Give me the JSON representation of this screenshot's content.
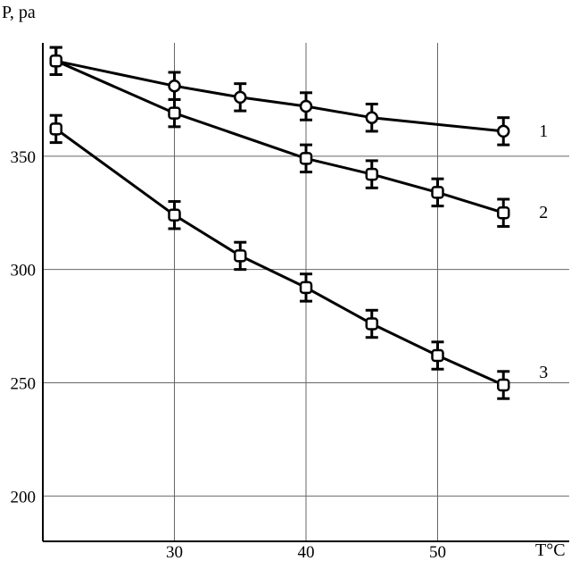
{
  "chart_data": {
    "type": "line",
    "ylabel": "P, pa",
    "xlabel": "T°C",
    "xlim": [
      20,
      60
    ],
    "ylim": [
      180,
      400
    ],
    "x_ticks": [
      30,
      40,
      50
    ],
    "y_ticks": [
      200,
      250,
      300,
      350
    ],
    "grid": true,
    "series": [
      {
        "name": "1",
        "marker": "circle",
        "x": [
          21,
          30,
          35,
          40,
          45,
          55
        ],
        "y": [
          392,
          381,
          376,
          372,
          367,
          361
        ],
        "err": [
          6,
          6,
          6,
          6,
          6,
          6
        ]
      },
      {
        "name": "2",
        "marker": "square",
        "x": [
          21,
          30,
          40,
          45,
          50,
          55
        ],
        "y": [
          392,
          369,
          349,
          342,
          334,
          325
        ],
        "err": [
          6,
          6,
          6,
          6,
          6,
          6
        ]
      },
      {
        "name": "3",
        "marker": "square",
        "x": [
          21,
          30,
          35,
          40,
          45,
          50,
          55
        ],
        "y": [
          362,
          324,
          306,
          292,
          276,
          262,
          249
        ],
        "err": [
          6,
          6,
          6,
          6,
          6,
          6,
          6
        ]
      }
    ]
  }
}
